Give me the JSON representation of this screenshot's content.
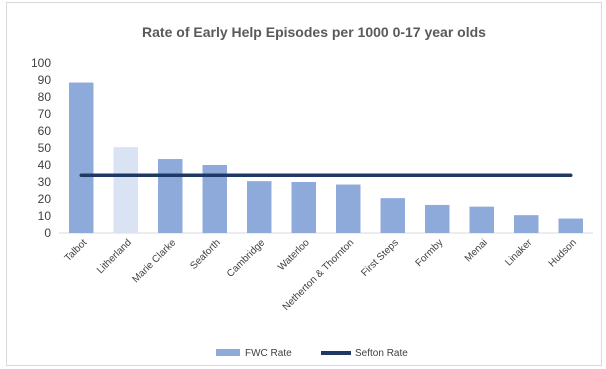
{
  "chart_data": {
    "type": "bar",
    "title": "Rate of Early Help Episodes per 1000 0-17 year olds",
    "categories": [
      "Talbot",
      "Litherland",
      "Marie Clarke",
      "Seaforth",
      "Cambridge",
      "Waterloo",
      "Netherton & Thornton",
      "First Steps",
      "Formby",
      "Menai",
      "Linaker",
      "Hudson"
    ],
    "series": [
      {
        "name": "FWC Rate",
        "type": "bar",
        "values": [
          88.5,
          50.5,
          43.5,
          40,
          30.5,
          30,
          28.5,
          20.5,
          16.5,
          15.5,
          10.5,
          8.5
        ],
        "color": "#8eaadb"
      },
      {
        "name": "Sefton Rate",
        "type": "line",
        "values": [
          34,
          34,
          34,
          34,
          34,
          34,
          34,
          34,
          34,
          34,
          34,
          34
        ],
        "color": "#203864"
      }
    ],
    "highlight_category": "Litherland",
    "highlight_color": "#dae3f3",
    "ylim": [
      0,
      100
    ],
    "yticks": [
      0,
      10,
      20,
      30,
      40,
      50,
      60,
      70,
      80,
      90,
      100
    ],
    "grid": false,
    "legend_position": "bottom"
  }
}
